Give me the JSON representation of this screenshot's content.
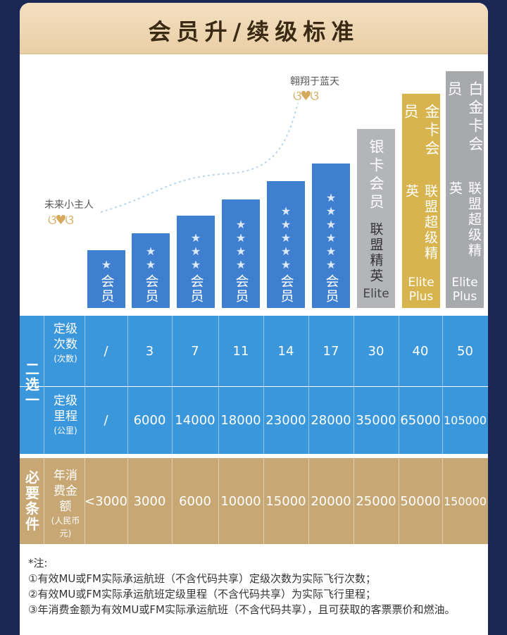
{
  "header": {
    "title": "会员升/续级标准"
  },
  "decor": {
    "left_label": "未来小主人",
    "right_label": "翱翔于蓝天",
    "wing_glyph": "ଓ♥ଓ"
  },
  "tiers": [
    {
      "stars": "★",
      "label": "会员"
    },
    {
      "stars": "★★",
      "label": "会员"
    },
    {
      "stars": "★★★",
      "label": "会员"
    },
    {
      "stars": "★★★★",
      "label": "会员"
    },
    {
      "stars": "★★★★★",
      "label": "会员"
    },
    {
      "stars": "★★★★★★",
      "label": "会员"
    }
  ],
  "premium": [
    {
      "title": "银卡会员",
      "sub": "联盟精英",
      "en": "Elite"
    },
    {
      "title": "金卡会员",
      "sub": "联盟超级精英",
      "en": "Elite Plus"
    },
    {
      "title": "白金卡会员",
      "sub": "联盟超级精英",
      "en": "Elite Plus"
    }
  ],
  "table": {
    "group_choose": "二选一",
    "group_required": "必要条件",
    "row_count": {
      "label": "定级次数",
      "unit": "(次数)",
      "values": [
        "/",
        "3",
        "7",
        "11",
        "14",
        "17",
        "30",
        "40",
        "50"
      ]
    },
    "row_miles": {
      "label": "定级里程",
      "unit": "(公里)",
      "values": [
        "/",
        "6000",
        "14000",
        "18000",
        "23000",
        "28000",
        "35000",
        "65000",
        "105000"
      ]
    },
    "row_spend": {
      "label": "年消费金额",
      "unit": "(人民币元)",
      "values": [
        "<3000",
        "3000",
        "6000",
        "10000",
        "15000",
        "20000",
        "25000",
        "50000",
        "150000"
      ]
    }
  },
  "notes": {
    "title": "*注:",
    "lines": [
      "①有效MU或FM实际承运航班（不含代码共享）定级次数为实际飞行次数；",
      "②有效MU或FM实际承运航班定级里程（不含代码共享）为实际飞行里程；",
      "③年消费金额为有效MU或FM实际承运航班（不含代码共享），且可获取的客票票价和燃油。"
    ]
  },
  "colors": {
    "blue": "#3f7fd0",
    "table_blue": "#3a97db",
    "gold": "#d7b44d",
    "tan": "#c7a773",
    "navy": "#1b2855"
  }
}
